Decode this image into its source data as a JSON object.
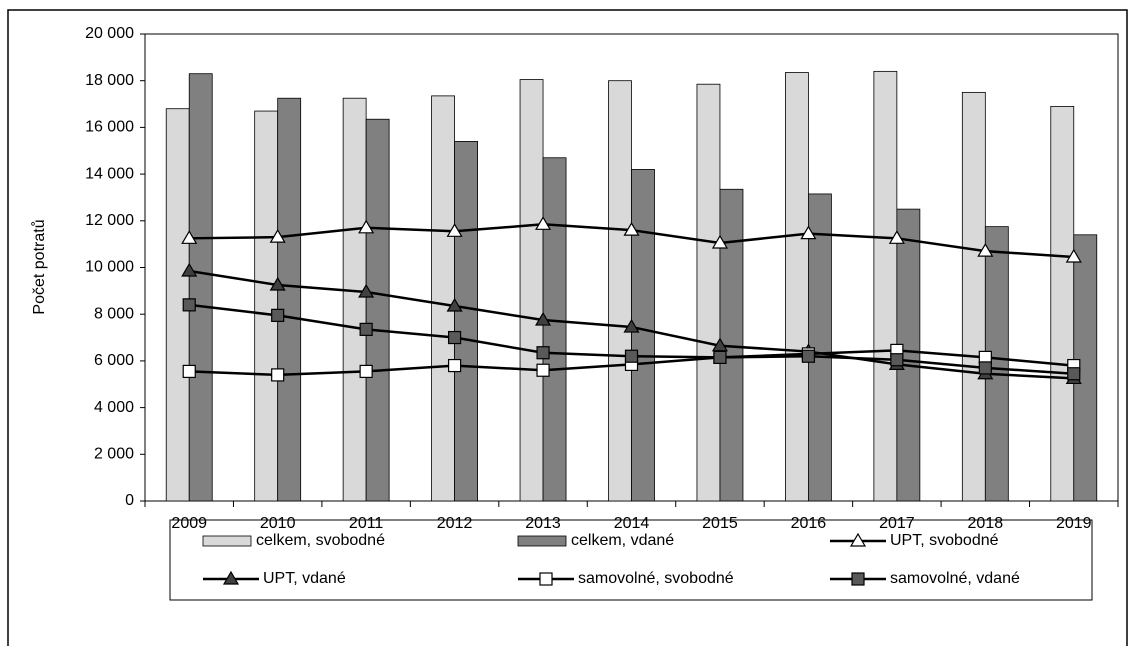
{
  "chart_data": {
    "type": "bar",
    "y_label": "Počet potratů",
    "categories": [
      "2009",
      "2010",
      "2011",
      "2012",
      "2013",
      "2014",
      "2015",
      "2016",
      "2017",
      "2018",
      "2019"
    ],
    "ylim": [
      0,
      20000
    ],
    "yticks": [
      0,
      {
        "value": 2000,
        "label": "2 000"
      },
      {
        "value": 4000,
        "label": "4 000"
      },
      {
        "value": 6000,
        "label": "6 000"
      },
      {
        "value": 8000,
        "label": "8 000"
      },
      {
        "value": 10000,
        "label": "10 000"
      },
      {
        "value": 12000,
        "label": "12 000"
      },
      {
        "value": 14000,
        "label": "14 000"
      },
      {
        "value": 16000,
        "label": "16 000"
      },
      {
        "value": 18000,
        "label": "18 000"
      },
      {
        "value": 20000,
        "label": "20 000"
      }
    ],
    "series": [
      {
        "name": "celkem, svobodné",
        "type": "bar",
        "color": "#d9d9d9",
        "values": [
          16800,
          16700,
          17250,
          17350,
          18050,
          18000,
          17850,
          18350,
          18400,
          17500,
          16900
        ]
      },
      {
        "name": "celkem, vdané",
        "type": "bar",
        "color": "#808080",
        "values": [
          18300,
          17250,
          16350,
          15400,
          14700,
          14200,
          13350,
          13150,
          12500,
          11750,
          11400
        ]
      },
      {
        "name": "UPT, svobodné",
        "type": "line",
        "marker": "triangle",
        "color": "#ffffff",
        "values": [
          11250,
          11300,
          11700,
          11550,
          11850,
          11600,
          11050,
          11450,
          11250,
          10700,
          10450
        ]
      },
      {
        "name": "UPT, vdané",
        "type": "line",
        "marker": "triangle",
        "color": "#404040",
        "values": [
          9850,
          9250,
          8950,
          8350,
          7750,
          7450,
          6650,
          6400,
          5850,
          5450,
          5250
        ]
      },
      {
        "name": "samovolné, svobodné",
        "type": "line",
        "marker": "square",
        "color": "#ffffff",
        "values": [
          5550,
          5400,
          5550,
          5800,
          5600,
          5850,
          6150,
          6300,
          6450,
          6150,
          5800
        ]
      },
      {
        "name": "samovolné, vdané",
        "type": "line",
        "marker": "square",
        "color": "#595959",
        "values": [
          8400,
          7950,
          7350,
          7000,
          6350,
          6200,
          6150,
          6200,
          6050,
          5700,
          5450
        ]
      }
    ]
  }
}
